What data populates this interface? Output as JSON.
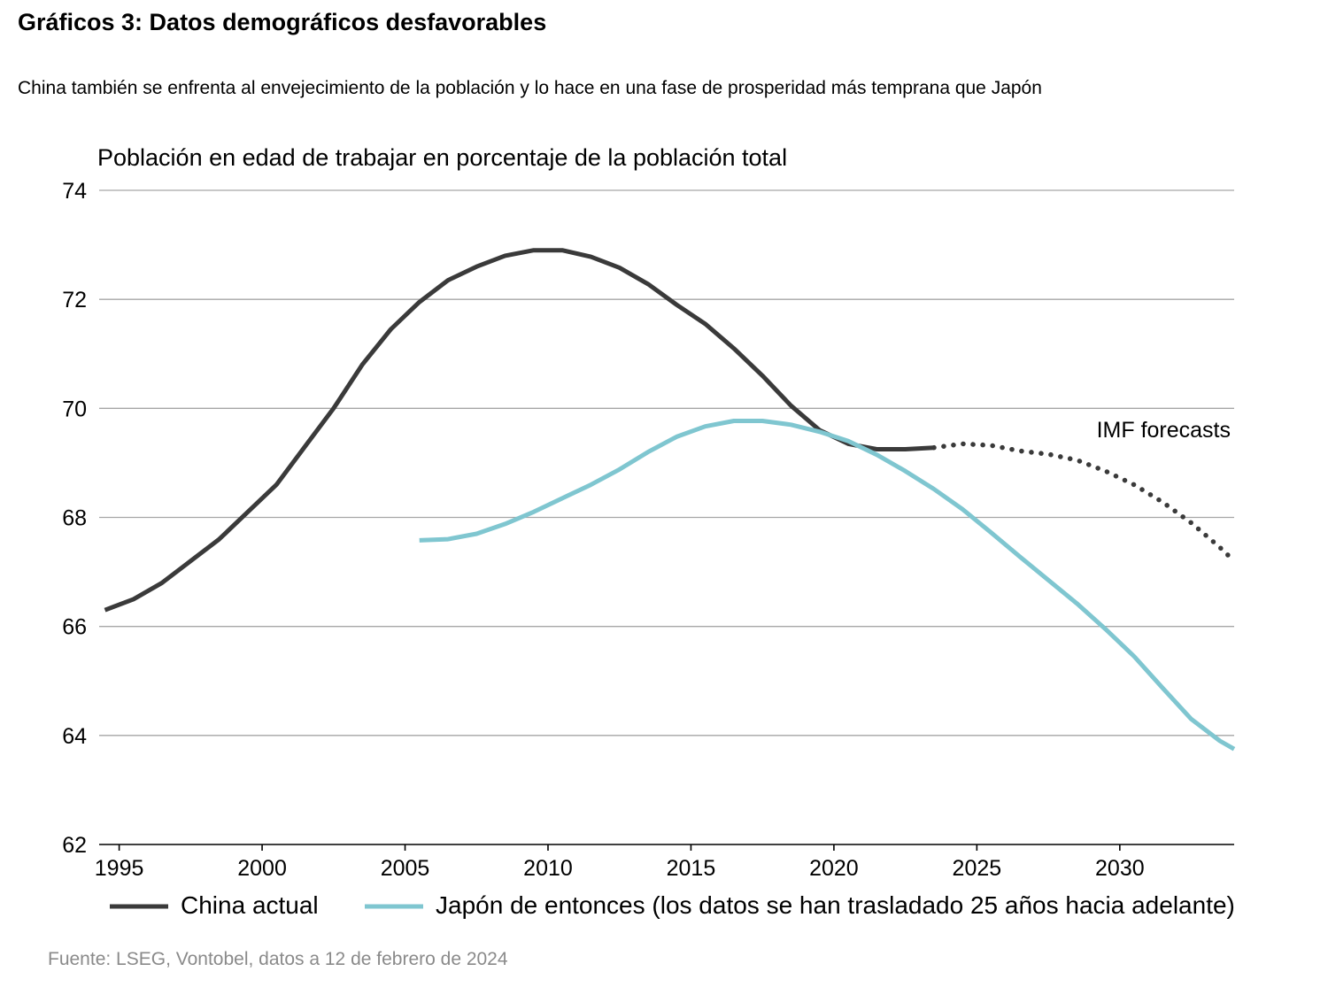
{
  "header": {
    "title": "Gráficos 3: Datos demográficos desfavorables",
    "subtitle": "China también se enfrenta al envejecimiento de la población y lo hace en una fase de prosperidad más temprana que Japón"
  },
  "footer": {
    "source": "Fuente: LSEG, Vontobel, datos a 12 de febrero de 2024"
  },
  "chart_data": {
    "type": "line",
    "ylabel": "Población en edad de trabajar en porcentaje de la población total",
    "xlim": [
      1994.3,
      2034.0
    ],
    "ylim": [
      62,
      74
    ],
    "x_ticks": [
      1995,
      2000,
      2005,
      2010,
      2015,
      2020,
      2025,
      2030
    ],
    "y_ticks": [
      62,
      64,
      66,
      68,
      70,
      72,
      74
    ],
    "grid": "horizontal",
    "annotation": "IMF forecasts",
    "legend_position": "bottom",
    "series": [
      {
        "name": "China actual",
        "color": "#3a3a3a",
        "style": "solid",
        "x": [
          1994.5,
          1995.5,
          1996.5,
          1997.5,
          1998.5,
          1999.5,
          2000.5,
          2001.5,
          2002.5,
          2003.5,
          2004.5,
          2005.5,
          2006.5,
          2007.5,
          2008.5,
          2009.5,
          2010.5,
          2011.5,
          2012.5,
          2013.5,
          2014.5,
          2015.5,
          2016.5,
          2017.5,
          2018.5,
          2019.5,
          2020.5,
          2021.5,
          2022.5,
          2023.5
        ],
        "values": [
          66.3,
          66.5,
          66.8,
          67.2,
          67.6,
          68.1,
          68.6,
          69.3,
          70.0,
          70.8,
          71.45,
          71.95,
          72.35,
          72.6,
          72.8,
          72.9,
          72.9,
          72.78,
          72.58,
          72.28,
          71.9,
          71.55,
          71.1,
          70.6,
          70.05,
          69.6,
          69.35,
          69.25,
          69.25,
          69.28
        ]
      },
      {
        "name": "China IMF forecasts",
        "color": "#3a3a3a",
        "style": "dotted",
        "x": [
          2023.5,
          2024.5,
          2025.5,
          2026.5,
          2027.5,
          2028.5,
          2029.5,
          2030.5,
          2031.5,
          2032.5,
          2033.5,
          2034.0
        ],
        "values": [
          69.28,
          69.35,
          69.32,
          69.22,
          69.16,
          69.05,
          68.85,
          68.6,
          68.28,
          67.9,
          67.45,
          67.2
        ]
      },
      {
        "name": "Japón de entonces (los datos se han trasladado 25 años hacia adelante)",
        "color": "#7fc6d0",
        "style": "solid",
        "x": [
          2005.5,
          2006.5,
          2007.5,
          2008.5,
          2009.5,
          2010.5,
          2011.5,
          2012.5,
          2013.5,
          2014.5,
          2015.5,
          2016.5,
          2017.5,
          2018.5,
          2019.5,
          2020.5,
          2021.5,
          2022.5,
          2023.5,
          2024.5,
          2025.5,
          2026.5,
          2027.5,
          2028.5,
          2029.5,
          2030.5,
          2031.5,
          2032.5,
          2033.5,
          2034.0
        ],
        "values": [
          67.58,
          67.6,
          67.7,
          67.88,
          68.1,
          68.35,
          68.6,
          68.88,
          69.2,
          69.48,
          69.67,
          69.77,
          69.77,
          69.7,
          69.57,
          69.4,
          69.15,
          68.85,
          68.52,
          68.15,
          67.72,
          67.28,
          66.85,
          66.42,
          65.95,
          65.45,
          64.87,
          64.3,
          63.9,
          63.75
        ]
      }
    ]
  },
  "legend": {
    "items": [
      {
        "label": "China actual",
        "color": "#3a3a3a"
      },
      {
        "label": "Japón de entonces (los datos se han trasladado 25 años hacia adelante)",
        "color": "#7fc6d0"
      }
    ]
  }
}
